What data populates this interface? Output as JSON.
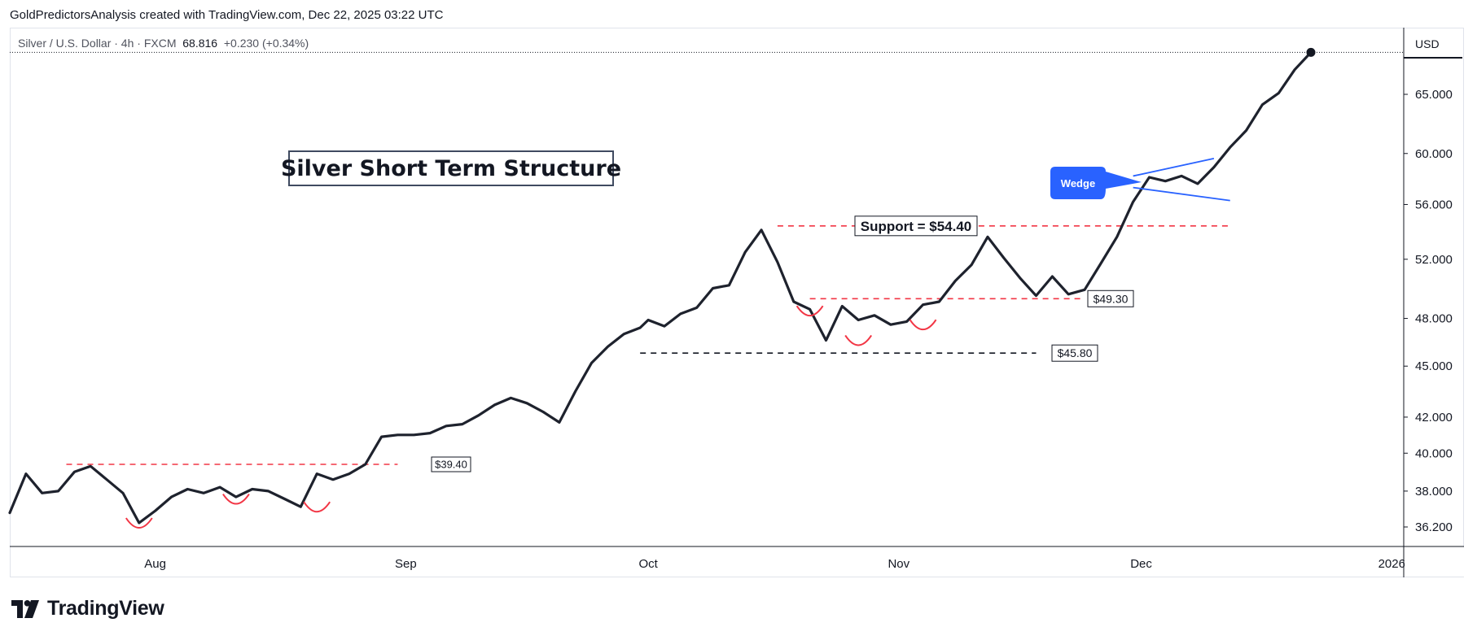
{
  "header": {
    "credit": "GoldPredictorsAnalysis created with TradingView.com, Dec 22, 2025 03:22 UTC"
  },
  "legend": {
    "symbol": "Silver / U.S. Dollar · 4h · FXCM",
    "last": "68.816",
    "change": "+0.230 (+0.34%)"
  },
  "price_axis": {
    "currency_button": "USD"
  },
  "branding": {
    "logo_text": "TradingView"
  },
  "colors": {
    "line": "#1e222d",
    "dashed_red": "#f23645",
    "dashed_black": "#131722",
    "wedge_blue": "#2962ff",
    "callout_blue": "#2962ff",
    "bottoms_red": "#f23645"
  },
  "chart_data": {
    "type": "line",
    "title": "Silver Short Term Structure",
    "xlabel": "",
    "ylabel": "",
    "y_scale": "log",
    "ylim": [
      35.1,
      69.3
    ],
    "x_ticks": [
      {
        "label": "Aug",
        "date": "2025-08-01"
      },
      {
        "label": "Sep",
        "date": "2025-09-01"
      },
      {
        "label": "Oct",
        "date": "2025-10-01"
      },
      {
        "label": "Nov",
        "date": "2025-11-01"
      },
      {
        "label": "Dec",
        "date": "2025-12-01"
      },
      {
        "label": "2026",
        "date": "2026-01-01"
      }
    ],
    "y_ticks": [
      "36.200",
      "38.000",
      "40.000",
      "42.000",
      "45.000",
      "48.000",
      "52.000",
      "56.000",
      "60.000",
      "65.000"
    ],
    "series": [
      {
        "x": [
          "2025-07-14",
          "2025-07-16",
          "2025-07-18",
          "2025-07-20",
          "2025-07-22",
          "2025-07-24",
          "2025-07-26",
          "2025-07-28",
          "2025-07-30",
          "2025-08-01",
          "2025-08-03",
          "2025-08-05",
          "2025-08-07",
          "2025-08-09",
          "2025-08-11",
          "2025-08-13",
          "2025-08-15",
          "2025-08-17",
          "2025-08-19",
          "2025-08-21",
          "2025-08-23",
          "2025-08-25",
          "2025-08-27",
          "2025-08-29",
          "2025-08-31",
          "2025-09-02",
          "2025-09-04",
          "2025-09-06",
          "2025-09-08",
          "2025-09-10",
          "2025-09-12",
          "2025-09-14",
          "2025-09-16",
          "2025-09-18",
          "2025-09-20",
          "2025-09-22",
          "2025-09-24",
          "2025-09-26",
          "2025-09-28",
          "2025-09-30",
          "2025-10-01",
          "2025-10-03",
          "2025-10-05",
          "2025-10-07",
          "2025-10-09",
          "2025-10-11",
          "2025-10-13",
          "2025-10-15",
          "2025-10-17",
          "2025-10-19",
          "2025-10-21",
          "2025-10-23",
          "2025-10-25",
          "2025-10-27",
          "2025-10-29",
          "2025-10-31",
          "2025-11-02",
          "2025-11-04",
          "2025-11-06",
          "2025-11-08",
          "2025-11-10",
          "2025-11-12",
          "2025-11-14",
          "2025-11-16",
          "2025-11-18",
          "2025-11-20",
          "2025-11-22",
          "2025-11-24",
          "2025-11-26",
          "2025-11-28",
          "2025-11-30",
          "2025-12-02",
          "2025-12-04",
          "2025-12-06",
          "2025-12-08",
          "2025-12-10",
          "2025-12-12",
          "2025-12-14",
          "2025-12-16",
          "2025-12-18",
          "2025-12-20",
          "2025-12-22"
        ],
        "values": [
          36.9,
          38.9,
          37.9,
          38.0,
          39.0,
          39.3,
          38.6,
          37.9,
          36.4,
          37.0,
          37.7,
          38.1,
          37.9,
          38.2,
          37.7,
          38.1,
          38.0,
          37.6,
          37.2,
          38.9,
          38.6,
          38.9,
          39.4,
          40.9,
          41.0,
          41.0,
          41.1,
          41.5,
          41.6,
          42.1,
          42.7,
          43.1,
          42.8,
          42.3,
          41.7,
          43.5,
          45.2,
          46.2,
          47.0,
          47.4,
          47.9,
          47.5,
          48.3,
          48.7,
          50.0,
          50.2,
          52.5,
          54.1,
          51.8,
          49.1,
          48.6,
          46.6,
          48.8,
          47.9,
          48.2,
          47.6,
          47.8,
          48.9,
          49.1,
          50.5,
          51.6,
          53.6,
          52.1,
          50.7,
          49.5,
          50.8,
          49.6,
          49.9,
          51.7,
          53.6,
          56.2,
          58.1,
          57.8,
          58.2,
          57.6,
          58.9,
          60.5,
          61.9,
          64.1,
          65.1,
          67.2,
          68.8
        ]
      }
    ],
    "annotations": {
      "title_box": "Silver Short Term Structure",
      "levels": [
        {
          "label": "Support = $54.40",
          "value": 54.4,
          "style": "red-dashed"
        },
        {
          "label": "$49.30",
          "value": 49.3,
          "style": "red-dashed"
        },
        {
          "label": "$45.80",
          "value": 45.8,
          "style": "black-dashed"
        },
        {
          "label": "$39.40",
          "value": 39.4,
          "style": "red-dashed"
        }
      ],
      "callout": "Wedge",
      "wedge": {
        "upper": [
          [
            "2025-11-30",
            58.2
          ],
          [
            "2025-12-10",
            59.6
          ]
        ],
        "lower": [
          [
            "2025-11-30",
            57.3
          ],
          [
            "2025-12-12",
            56.3
          ]
        ]
      },
      "bottoms": [
        {
          "date": "2025-07-30",
          "value": 36.4
        },
        {
          "date": "2025-08-11",
          "value": 37.6
        },
        {
          "date": "2025-08-21",
          "value": 37.2
        },
        {
          "date": "2025-10-21",
          "value": 48.5
        },
        {
          "date": "2025-10-27",
          "value": 46.6
        },
        {
          "date": "2025-11-04",
          "value": 47.6
        }
      ]
    }
  }
}
